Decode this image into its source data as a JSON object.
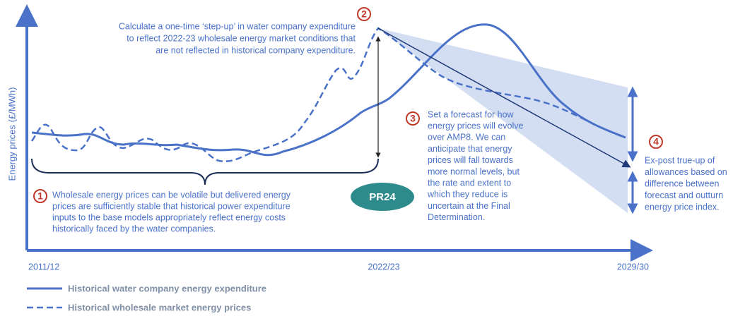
{
  "y_axis_label": "Energy prices (£/MWh)",
  "x_labels": [
    "2011/12",
    "2022/23",
    "2029/30"
  ],
  "annotations": [
    {
      "number": "1",
      "lines": [
        "Wholesale energy prices can be volatile but delivered energy",
        "prices are sufficiently stable that historical power expenditure",
        "inputs to the base models appropriately reflect energy costs",
        "historically faced by the water companies."
      ]
    },
    {
      "number": "2",
      "lines": [
        "Calculate a one-time ‘step-up’ in water company expenditure",
        "to reflect 2022-23 wholesale energy market conditions that",
        "are not reflected in historical company expenditure."
      ]
    },
    {
      "number": "3",
      "lines": [
        "Set a forecast for how",
        "energy prices will evolve",
        "over AMP8. We can",
        "anticipate that energy",
        "prices will fall towards",
        "more normal levels, but",
        "the rate and extent to",
        "which they reduce is",
        "uncertain at the Final",
        "Determination."
      ]
    },
    {
      "number": "4",
      "lines": [
        "Ex-post true-up of",
        "allowances based on",
        "difference between",
        "forecast and outturn",
        "energy price index."
      ]
    }
  ],
  "badge": "PR24",
  "legend": [
    "Historical water company energy expenditure",
    "Historical wholesale market energy prices"
  ]
}
